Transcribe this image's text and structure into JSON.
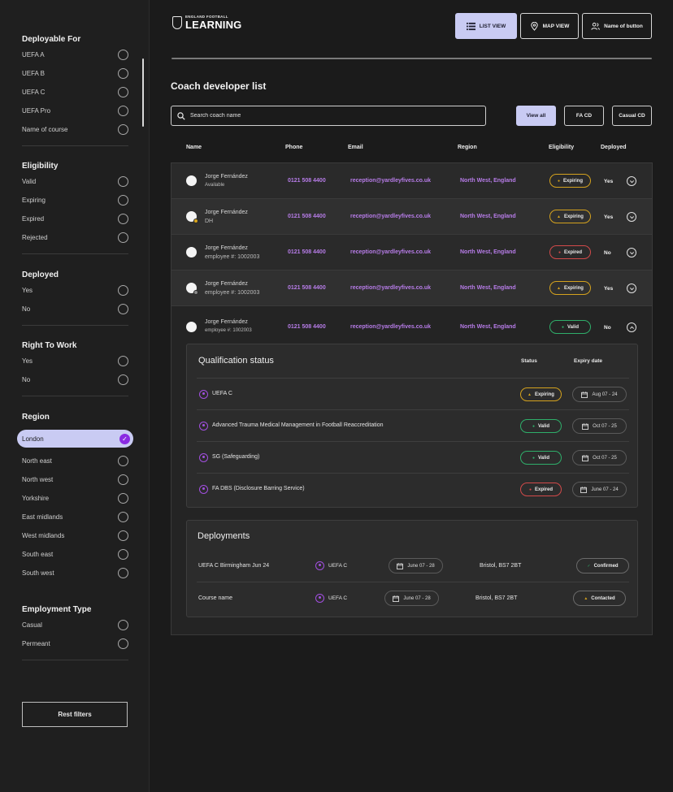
{
  "logo": {
    "top": "ENGLAND FOOTBALL",
    "main": "LEARNING"
  },
  "header": {
    "list_view": "LIST VIEW",
    "map_view": "MAP VIEW",
    "named_button": "Name of button"
  },
  "filters": {
    "deployable_for": {
      "title": "Deployable For",
      "options": [
        "UEFA A",
        "UEFA B",
        "UEFA C",
        "UEFA Pro",
        "Name of course"
      ]
    },
    "eligibility": {
      "title": "Eligibility",
      "options": [
        "Valid",
        "Expiring",
        "Expired",
        "Rejected"
      ]
    },
    "deployed": {
      "title": "Deployed",
      "options": [
        "Yes",
        "No"
      ]
    },
    "right_to_work": {
      "title": "Right To Work",
      "options": [
        "Yes",
        "No"
      ]
    },
    "region": {
      "title": "Region",
      "selected": "London",
      "options": [
        "North east",
        "North west",
        "Yorkshire",
        "East midlands",
        "West midlands",
        "South east",
        "South west"
      ]
    },
    "employment_type": {
      "title": "Employment Type",
      "options": [
        "Casual",
        "Permeant"
      ]
    },
    "reset_label": "Rest filters"
  },
  "page_title": "Coach developer list",
  "search": {
    "placeholder": "Search coach name"
  },
  "filter_buttons": {
    "view_all": "View all",
    "fa_cd": "FA CD",
    "casual_cd": "Casual CD"
  },
  "columns": {
    "name": "Name",
    "phone": "Phone",
    "email": "Email",
    "region": "Region",
    "eligibility": "Eligibility",
    "deployed": "Deployed"
  },
  "rows": [
    {
      "name": "Jorge Fernández",
      "sub": "Available",
      "phone": "0121 508 4400",
      "email": "reception@yardleyfives.co.uk",
      "region": "North West, England",
      "eligibility": "Expiring",
      "deployed": "Yes"
    },
    {
      "name": "Jorge Fernández",
      "sub": "DH",
      "phone": "0121 508 4400",
      "email": "reception@yardleyfives.co.uk",
      "region": "North West, England",
      "eligibility": "Expiring",
      "deployed": "Yes"
    },
    {
      "name": "Jorge Fernández",
      "sub": "employee #: 1002003",
      "phone": "0121 508 4400",
      "email": "reception@yardleyfives.co.uk",
      "region": "North West, England",
      "eligibility": "Expired",
      "deployed": "No"
    },
    {
      "name": "Jorge Fernández",
      "sub": "employee #: 1002003",
      "phone": "0121 508 4400",
      "email": "reception@yardleyfives.co.uk",
      "region": "North West, England",
      "eligibility": "Expiring",
      "deployed": "Yes"
    },
    {
      "name": "Jorge Fernández",
      "sub": "employee #: 1002003",
      "phone": "0121 508 4400",
      "email": "reception@yardleyfives.co.uk",
      "region": "North West, England",
      "eligibility": "Valid",
      "deployed": "No"
    }
  ],
  "qualification": {
    "title": "Qualification status",
    "status_header": "Status",
    "expiry_header": "Expiry date",
    "items": [
      {
        "name": "UEFA C",
        "status": "Expiring",
        "date": "Aug 07 - 24"
      },
      {
        "name": "Advanced Trauma Medical Management in Football Reaccreditation",
        "status": "Valid",
        "date": "Oct 07 - 25"
      },
      {
        "name": "SG (Safeguarding)",
        "status": "Valid",
        "date": "Oct 07 - 25"
      },
      {
        "name": "FA DBS (Disclosure Barring Service)",
        "status": "Expired",
        "date": "June 07 - 24"
      }
    ]
  },
  "deployments": {
    "title": "Deployments",
    "items": [
      {
        "name": "UEFA C Birmingham Jun 24",
        "qualification": "UEFA C",
        "date": "June 07 - 28",
        "location": "Bristol, BS7 2BT",
        "status": "Confirmed"
      },
      {
        "name": "Course name",
        "qualification": "UEFA C",
        "date": "June 07 - 28",
        "location": "Bristol, BS7 2BT",
        "status": "Contacted"
      }
    ]
  },
  "colors": {
    "accent": "#c9cbf3",
    "link": "#b77ce8",
    "valid": "#2fae6a",
    "expiring": "#d4a21e",
    "expired": "#d24a4a"
  }
}
